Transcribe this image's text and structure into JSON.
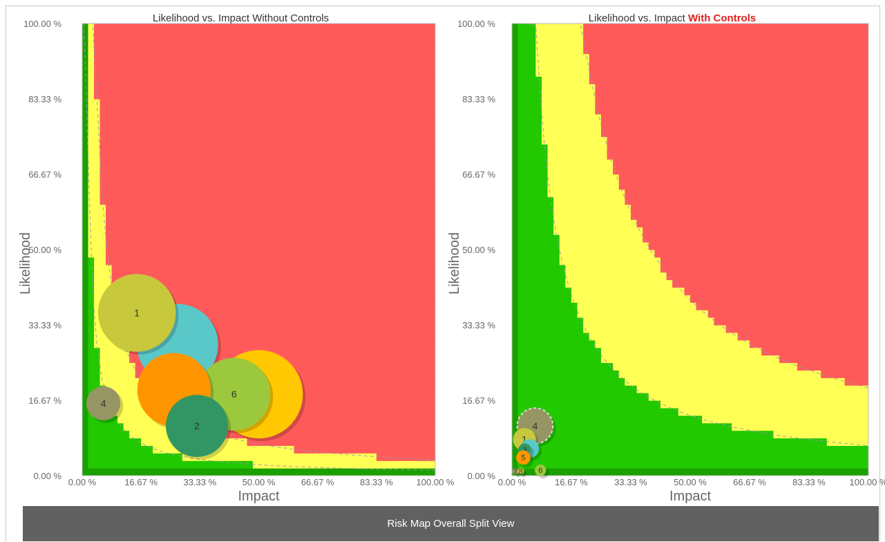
{
  "caption": "Risk Map Overall Split View",
  "colors": {
    "high": "#ff5a5a",
    "medium": "#ffff55",
    "low": "#22c800",
    "edge": "#1aa000"
  },
  "chart_data": [
    {
      "type": "scatter",
      "variant": "bubble-risk-map",
      "title_prefix": "Likelihood vs. Impact ",
      "title_emphasis": "Without Controls",
      "title_emphasis_color": "#333333",
      "xlabel": "Impact",
      "ylabel": "Likelihood",
      "xlim": [
        0,
        100
      ],
      "ylim": [
        0,
        100
      ],
      "x_ticks": [
        "0.00 %",
        "16.67 %",
        "33.33 %",
        "50.00 %",
        "66.67 %",
        "83.33 %",
        "100.00 %"
      ],
      "y_ticks": [
        "0.00 %",
        "16.67 %",
        "33.33 %",
        "50.00 %",
        "66.67 %",
        "83.33 %",
        "100.00 %"
      ],
      "points": [
        {
          "label": "",
          "x": 50,
          "y": 18,
          "r": 12.5,
          "color": "#ffc800"
        },
        {
          "label": "",
          "x": 27,
          "y": 29,
          "r": 11.5,
          "color": "#5ac8c8"
        },
        {
          "label": "1",
          "x": 15.5,
          "y": 36,
          "r": 11.0,
          "color": "#c8c83c"
        },
        {
          "label": "6",
          "x": 43,
          "y": 18,
          "r": 10.3,
          "color": "#9bc83c"
        },
        {
          "label": "",
          "x": 26,
          "y": 19,
          "r": 10.4,
          "color": "#ff9600"
        },
        {
          "label": "2",
          "x": 32.5,
          "y": 11,
          "r": 8.8,
          "color": "#329664"
        },
        {
          "label": "4",
          "x": 6,
          "y": 16,
          "r": 4.8,
          "color": "#969664"
        }
      ]
    },
    {
      "type": "scatter",
      "variant": "bubble-risk-map",
      "title_prefix": "Likelihood vs. Impact ",
      "title_emphasis": "With Controls",
      "title_emphasis_color": "#e02020",
      "xlabel": "Impact",
      "ylabel": "Likelihood",
      "xlim": [
        0,
        100
      ],
      "ylim": [
        0,
        100
      ],
      "x_ticks": [
        "0.00 %",
        "16.67 %",
        "33.33 %",
        "50.00 %",
        "66.67 %",
        "83.33 %",
        "100.00 %"
      ],
      "y_ticks": [
        "0.00 %",
        "16.67 %",
        "33.33 %",
        "50.00 %",
        "66.67 %",
        "83.33 %",
        "100.00 %"
      ],
      "points": [
        {
          "label": "4",
          "x": 6.5,
          "y": 11,
          "r": 5.0,
          "color": "#969664"
        },
        {
          "label": "1",
          "x": 3.5,
          "y": 8,
          "r": 3.2,
          "color": "#c8c83c"
        },
        {
          "label": "",
          "x": 5,
          "y": 6,
          "r": 2.6,
          "color": "#5ac8c8"
        },
        {
          "label": "3",
          "x": 3.6,
          "y": 5.7,
          "r": 1.8,
          "color": "#329664"
        },
        {
          "label": "5",
          "x": 3.2,
          "y": 4,
          "r": 2.0,
          "color": "#ff9600"
        },
        {
          "label": "6",
          "x": 8,
          "y": 1.2,
          "r": 1.6,
          "color": "#9bc83c"
        },
        {
          "label": "7",
          "x": 1,
          "y": 1.0,
          "r": 0.9,
          "color": "#969664"
        },
        {
          "label": "8",
          "x": 2.5,
          "y": 1.0,
          "r": 0.9,
          "color": "#c8c83c"
        }
      ]
    }
  ]
}
